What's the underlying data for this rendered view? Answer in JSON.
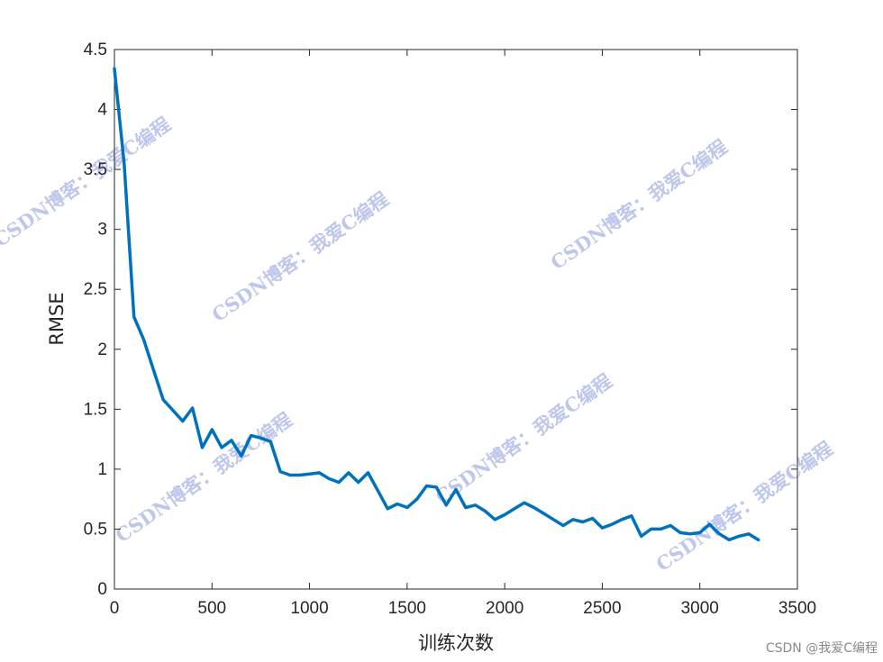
{
  "chart_data": {
    "type": "line",
    "title": "",
    "xlabel": "训练次数",
    "ylabel": "RMSE",
    "xlim": [
      0,
      3500
    ],
    "ylim": [
      0,
      4.5
    ],
    "xticks": [
      0,
      500,
      1000,
      1500,
      2000,
      2500,
      3000,
      3500
    ],
    "yticks": [
      0,
      0.5,
      1,
      1.5,
      2,
      2.5,
      3,
      3.5,
      4,
      4.5
    ],
    "xtick_labels": [
      "0",
      "500",
      "1000",
      "1500",
      "2000",
      "2500",
      "3000",
      "3500"
    ],
    "ytick_labels": [
      "0",
      "0.5",
      "1",
      "1.5",
      "2",
      "2.5",
      "3",
      "3.5",
      "4",
      "4.5"
    ],
    "grid": false,
    "series": [
      {
        "color": "#0072bd",
        "x": [
          0,
          50,
          100,
          150,
          200,
          250,
          300,
          350,
          400,
          450,
          500,
          550,
          600,
          650,
          700,
          750,
          800,
          850,
          900,
          950,
          1000,
          1050,
          1100,
          1150,
          1200,
          1250,
          1300,
          1350,
          1400,
          1450,
          1500,
          1550,
          1600,
          1650,
          1700,
          1750,
          1800,
          1850,
          1900,
          1950,
          2000,
          2050,
          2100,
          2150,
          2200,
          2250,
          2300,
          2350,
          2400,
          2450,
          2500,
          2550,
          2600,
          2650,
          2700,
          2750,
          2800,
          2850,
          2900,
          2950,
          3000,
          3050,
          3100,
          3150,
          3200,
          3250,
          3300
        ],
        "y": [
          4.34,
          3.55,
          2.27,
          2.08,
          1.83,
          1.58,
          1.49,
          1.4,
          1.51,
          1.18,
          1.33,
          1.18,
          1.24,
          1.11,
          1.28,
          1.26,
          1.23,
          0.98,
          0.95,
          0.95,
          0.96,
          0.97,
          0.92,
          0.89,
          0.97,
          0.89,
          0.97,
          0.82,
          0.67,
          0.71,
          0.68,
          0.75,
          0.86,
          0.85,
          0.7,
          0.83,
          0.68,
          0.7,
          0.65,
          0.58,
          0.62,
          0.67,
          0.72,
          0.68,
          0.63,
          0.58,
          0.53,
          0.58,
          0.56,
          0.59,
          0.51,
          0.54,
          0.58,
          0.61,
          0.44,
          0.5,
          0.5,
          0.53,
          0.47,
          0.46,
          0.47,
          0.54,
          0.46,
          0.41,
          0.44,
          0.46,
          0.41
        ]
      }
    ]
  },
  "watermark": {
    "text": "CSDN博客：我爱C编程",
    "credit": "CSDN @我爱C编程"
  }
}
